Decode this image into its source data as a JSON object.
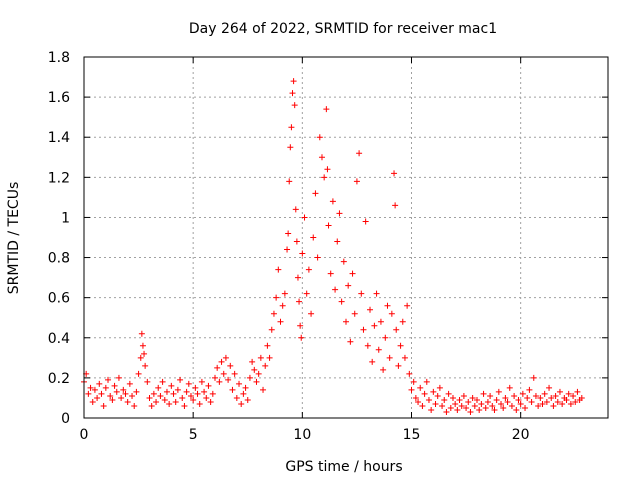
{
  "chart_data": {
    "type": "scatter",
    "title": "Day 264 of 2022, SRMTID for receiver mac1",
    "xlabel": "GPS time / hours",
    "ylabel": "SRMTID / TECUs",
    "xlim": [
      0,
      24
    ],
    "ylim": [
      0,
      1.8
    ],
    "xticks": [
      0,
      5,
      10,
      15,
      20
    ],
    "yticks": [
      0,
      0.2,
      0.4,
      0.6,
      0.8,
      1,
      1.2,
      1.4,
      1.6,
      1.8
    ],
    "xtick_labels": [
      "0",
      "5",
      "10",
      "15",
      "20"
    ],
    "ytick_labels": [
      "0",
      "0.2",
      "0.4",
      "0.6",
      "0.8",
      "1",
      "1.2",
      "1.4",
      "1.6",
      "1.8"
    ],
    "grid": true,
    "marker": "+",
    "color": "#ff0000",
    "series": [
      {
        "name": "SRMTID",
        "points": [
          [
            0.0,
            0.18
          ],
          [
            0.1,
            0.22
          ],
          [
            0.2,
            0.12
          ],
          [
            0.3,
            0.15
          ],
          [
            0.4,
            0.08
          ],
          [
            0.5,
            0.14
          ],
          [
            0.6,
            0.1
          ],
          [
            0.7,
            0.17
          ],
          [
            0.8,
            0.12
          ],
          [
            0.9,
            0.06
          ],
          [
            1.0,
            0.15
          ],
          [
            1.1,
            0.19
          ],
          [
            1.2,
            0.11
          ],
          [
            1.3,
            0.09
          ],
          [
            1.4,
            0.16
          ],
          [
            1.5,
            0.13
          ],
          [
            1.6,
            0.2
          ],
          [
            1.7,
            0.1
          ],
          [
            1.8,
            0.14
          ],
          [
            1.9,
            0.12
          ],
          [
            2.0,
            0.08
          ],
          [
            2.1,
            0.17
          ],
          [
            2.2,
            0.11
          ],
          [
            2.3,
            0.06
          ],
          [
            2.4,
            0.13
          ],
          [
            2.5,
            0.22
          ],
          [
            2.6,
            0.3
          ],
          [
            2.65,
            0.42
          ],
          [
            2.7,
            0.36
          ],
          [
            2.75,
            0.32
          ],
          [
            2.8,
            0.26
          ],
          [
            2.9,
            0.18
          ],
          [
            3.0,
            0.1
          ],
          [
            3.1,
            0.06
          ],
          [
            3.2,
            0.12
          ],
          [
            3.3,
            0.08
          ],
          [
            3.4,
            0.15
          ],
          [
            3.5,
            0.11
          ],
          [
            3.6,
            0.18
          ],
          [
            3.7,
            0.09
          ],
          [
            3.8,
            0.13
          ],
          [
            3.9,
            0.07
          ],
          [
            4.0,
            0.16
          ],
          [
            4.1,
            0.12
          ],
          [
            4.2,
            0.08
          ],
          [
            4.3,
            0.14
          ],
          [
            4.4,
            0.19
          ],
          [
            4.5,
            0.1
          ],
          [
            4.6,
            0.06
          ],
          [
            4.7,
            0.13
          ],
          [
            4.8,
            0.17
          ],
          [
            4.9,
            0.11
          ],
          [
            5.0,
            0.09
          ],
          [
            5.1,
            0.15
          ],
          [
            5.2,
            0.12
          ],
          [
            5.3,
            0.07
          ],
          [
            5.4,
            0.18
          ],
          [
            5.5,
            0.13
          ],
          [
            5.6,
            0.1
          ],
          [
            5.7,
            0.16
          ],
          [
            5.8,
            0.08
          ],
          [
            5.9,
            0.12
          ],
          [
            6.0,
            0.2
          ],
          [
            6.1,
            0.25
          ],
          [
            6.2,
            0.18
          ],
          [
            6.3,
            0.28
          ],
          [
            6.4,
            0.22
          ],
          [
            6.5,
            0.3
          ],
          [
            6.6,
            0.19
          ],
          [
            6.7,
            0.26
          ],
          [
            6.8,
            0.14
          ],
          [
            6.9,
            0.22
          ],
          [
            7.0,
            0.1
          ],
          [
            7.1,
            0.17
          ],
          [
            7.2,
            0.07
          ],
          [
            7.3,
            0.12
          ],
          [
            7.4,
            0.15
          ],
          [
            7.5,
            0.09
          ],
          [
            7.6,
            0.2
          ],
          [
            7.7,
            0.28
          ],
          [
            7.8,
            0.24
          ],
          [
            7.9,
            0.18
          ],
          [
            8.0,
            0.22
          ],
          [
            8.1,
            0.3
          ],
          [
            8.2,
            0.14
          ],
          [
            8.3,
            0.26
          ],
          [
            8.4,
            0.36
          ],
          [
            8.5,
            0.3
          ],
          [
            8.6,
            0.44
          ],
          [
            8.7,
            0.52
          ],
          [
            8.8,
            0.6
          ],
          [
            8.9,
            0.74
          ],
          [
            9.0,
            0.48
          ],
          [
            9.1,
            0.56
          ],
          [
            9.2,
            0.62
          ],
          [
            9.3,
            0.84
          ],
          [
            9.35,
            0.92
          ],
          [
            9.4,
            1.18
          ],
          [
            9.45,
            1.35
          ],
          [
            9.5,
            1.45
          ],
          [
            9.55,
            1.62
          ],
          [
            9.6,
            1.68
          ],
          [
            9.65,
            1.56
          ],
          [
            9.7,
            1.04
          ],
          [
            9.75,
            0.88
          ],
          [
            9.8,
            0.7
          ],
          [
            9.85,
            0.58
          ],
          [
            9.9,
            0.46
          ],
          [
            9.95,
            0.4
          ],
          [
            10.0,
            0.82
          ],
          [
            10.1,
            1.0
          ],
          [
            10.2,
            0.62
          ],
          [
            10.3,
            0.74
          ],
          [
            10.4,
            0.52
          ],
          [
            10.5,
            0.9
          ],
          [
            10.6,
            1.12
          ],
          [
            10.7,
            0.8
          ],
          [
            10.8,
            1.4
          ],
          [
            10.9,
            1.3
          ],
          [
            11.0,
            1.2
          ],
          [
            11.1,
            1.54
          ],
          [
            11.15,
            1.24
          ],
          [
            11.2,
            0.96
          ],
          [
            11.3,
            0.72
          ],
          [
            11.4,
            1.08
          ],
          [
            11.5,
            0.64
          ],
          [
            11.6,
            0.88
          ],
          [
            11.7,
            1.02
          ],
          [
            11.8,
            0.58
          ],
          [
            11.9,
            0.78
          ],
          [
            12.0,
            0.48
          ],
          [
            12.1,
            0.66
          ],
          [
            12.2,
            0.38
          ],
          [
            12.3,
            0.72
          ],
          [
            12.4,
            0.52
          ],
          [
            12.5,
            1.18
          ],
          [
            12.6,
            1.32
          ],
          [
            12.7,
            0.62
          ],
          [
            12.8,
            0.44
          ],
          [
            12.9,
            0.98
          ],
          [
            13.0,
            0.36
          ],
          [
            13.1,
            0.54
          ],
          [
            13.2,
            0.28
          ],
          [
            13.3,
            0.46
          ],
          [
            13.4,
            0.62
          ],
          [
            13.5,
            0.34
          ],
          [
            13.6,
            0.48
          ],
          [
            13.7,
            0.24
          ],
          [
            13.8,
            0.4
          ],
          [
            13.9,
            0.56
          ],
          [
            14.0,
            0.3
          ],
          [
            14.1,
            0.52
          ],
          [
            14.2,
            1.22
          ],
          [
            14.25,
            1.06
          ],
          [
            14.3,
            0.44
          ],
          [
            14.4,
            0.26
          ],
          [
            14.5,
            0.36
          ],
          [
            14.6,
            0.48
          ],
          [
            14.7,
            0.3
          ],
          [
            14.8,
            0.56
          ],
          [
            14.9,
            0.22
          ],
          [
            15.0,
            0.14
          ],
          [
            15.1,
            0.18
          ],
          [
            15.2,
            0.1
          ],
          [
            15.3,
            0.08
          ],
          [
            15.4,
            0.15
          ],
          [
            15.5,
            0.06
          ],
          [
            15.6,
            0.12
          ],
          [
            15.7,
            0.18
          ],
          [
            15.8,
            0.09
          ],
          [
            15.9,
            0.04
          ],
          [
            16.0,
            0.13
          ],
          [
            16.1,
            0.07
          ],
          [
            16.2,
            0.11
          ],
          [
            16.3,
            0.15
          ],
          [
            16.4,
            0.06
          ],
          [
            16.5,
            0.09
          ],
          [
            16.6,
            0.03
          ],
          [
            16.7,
            0.12
          ],
          [
            16.8,
            0.05
          ],
          [
            16.9,
            0.1
          ],
          [
            17.0,
            0.07
          ],
          [
            17.1,
            0.04
          ],
          [
            17.2,
            0.09
          ],
          [
            17.3,
            0.06
          ],
          [
            17.4,
            0.11
          ],
          [
            17.5,
            0.05
          ],
          [
            17.6,
            0.08
          ],
          [
            17.7,
            0.03
          ],
          [
            17.8,
            0.1
          ],
          [
            17.9,
            0.06
          ],
          [
            18.0,
            0.09
          ],
          [
            18.1,
            0.04
          ],
          [
            18.2,
            0.07
          ],
          [
            18.3,
            0.12
          ],
          [
            18.4,
            0.05
          ],
          [
            18.5,
            0.08
          ],
          [
            18.6,
            0.11
          ],
          [
            18.7,
            0.06
          ],
          [
            18.8,
            0.04
          ],
          [
            18.9,
            0.09
          ],
          [
            19.0,
            0.13
          ],
          [
            19.1,
            0.07
          ],
          [
            19.2,
            0.05
          ],
          [
            19.3,
            0.1
          ],
          [
            19.4,
            0.08
          ],
          [
            19.5,
            0.15
          ],
          [
            19.6,
            0.06
          ],
          [
            19.7,
            0.11
          ],
          [
            19.8,
            0.04
          ],
          [
            19.9,
            0.09
          ],
          [
            20.0,
            0.07
          ],
          [
            20.1,
            0.12
          ],
          [
            20.2,
            0.05
          ],
          [
            20.3,
            0.1
          ],
          [
            20.4,
            0.14
          ],
          [
            20.5,
            0.08
          ],
          [
            20.6,
            0.2
          ],
          [
            20.7,
            0.11
          ],
          [
            20.8,
            0.06
          ],
          [
            20.9,
            0.1
          ],
          [
            21.0,
            0.07
          ],
          [
            21.1,
            0.12
          ],
          [
            21.2,
            0.08
          ],
          [
            21.3,
            0.15
          ],
          [
            21.4,
            0.1
          ],
          [
            21.5,
            0.06
          ],
          [
            21.6,
            0.11
          ],
          [
            21.7,
            0.08
          ],
          [
            21.8,
            0.13
          ],
          [
            21.9,
            0.07
          ],
          [
            22.0,
            0.1
          ],
          [
            22.1,
            0.09
          ],
          [
            22.2,
            0.12
          ],
          [
            22.3,
            0.07
          ],
          [
            22.4,
            0.11
          ],
          [
            22.5,
            0.08
          ],
          [
            22.6,
            0.13
          ],
          [
            22.7,
            0.09
          ],
          [
            22.8,
            0.1
          ]
        ]
      }
    ]
  }
}
